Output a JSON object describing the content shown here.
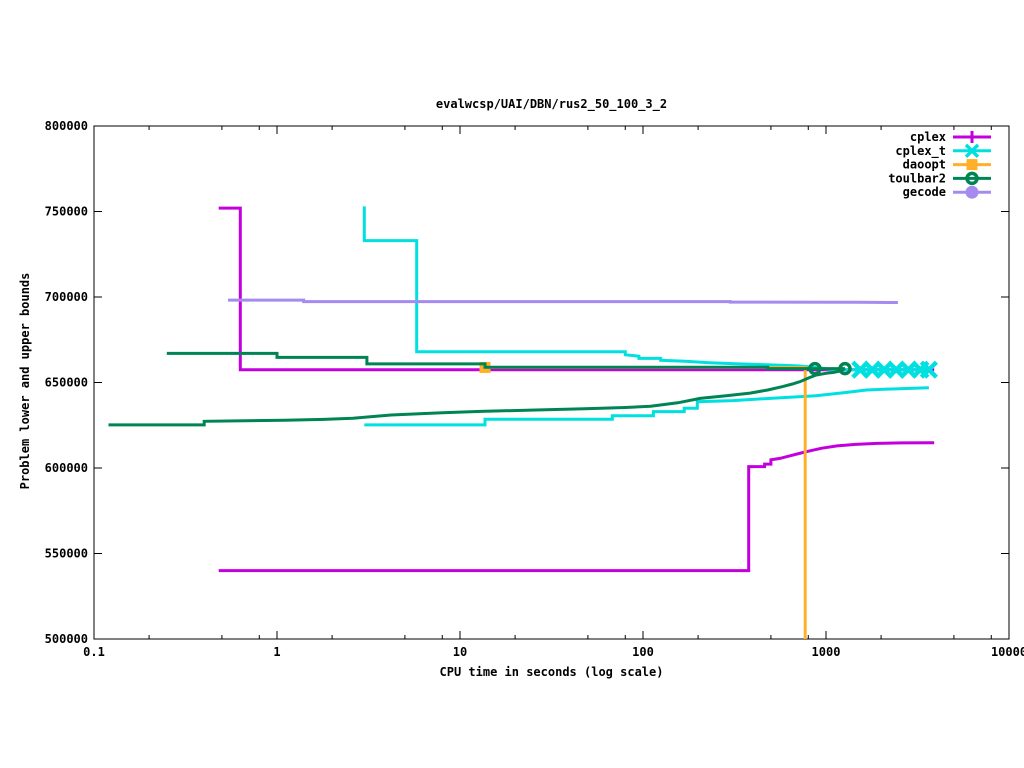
{
  "chart_data": {
    "type": "line",
    "title": "evalwcsp/UAI/DBN/rus2_50_100_3_2",
    "xlabel": "CPU time in seconds (log scale)",
    "ylabel": "Problem lower and upper bounds",
    "x_scale": "log10",
    "xlim": [
      0.1,
      10000
    ],
    "ylim": [
      500000,
      800000
    ],
    "grid": false,
    "legend_position": "top-right-inside",
    "x_ticks": [
      {
        "v": 0.1,
        "label": "0.1"
      },
      {
        "v": 1,
        "label": "1"
      },
      {
        "v": 10,
        "label": "10"
      },
      {
        "v": 100,
        "label": "100"
      },
      {
        "v": 1000,
        "label": "1000"
      },
      {
        "v": 10000,
        "label": "10000"
      }
    ],
    "x_minor_ticks": [
      0.2,
      0.5,
      0.8,
      2,
      5,
      8,
      20,
      50,
      80,
      200,
      500,
      800,
      2000,
      5000,
      8000
    ],
    "y_ticks": [
      {
        "v": 500000,
        "label": "500000"
      },
      {
        "v": 550000,
        "label": "550000"
      },
      {
        "v": 600000,
        "label": "600000"
      },
      {
        "v": 650000,
        "label": "650000"
      },
      {
        "v": 700000,
        "label": "700000"
      },
      {
        "v": 750000,
        "label": "750000"
      },
      {
        "v": 800000,
        "label": "800000"
      }
    ],
    "series": [
      {
        "name": "cplex",
        "color": "#c300dd",
        "marker": "plus",
        "lines": {
          "upper": [
            [
              0.48,
              752000
            ],
            [
              0.63,
              752000
            ],
            [
              0.63,
              657500
            ],
            [
              3900,
              657500
            ]
          ],
          "lower": [
            [
              0.48,
              540000
            ],
            [
              378,
              540000
            ],
            [
              378,
              600800
            ],
            [
              462,
              600800
            ],
            [
              462,
              602300
            ],
            [
              500,
              602300
            ],
            [
              500,
              604800
            ],
            [
              560,
              605600
            ],
            [
              640,
              607200
            ],
            [
              730,
              608800
            ],
            [
              830,
              610200
            ],
            [
              950,
              611600
            ],
            [
              1150,
              612900
            ],
            [
              1450,
              613800
            ],
            [
              1900,
              614400
            ],
            [
              2600,
              614700
            ],
            [
              3900,
              614800
            ]
          ]
        },
        "marker_points": []
      },
      {
        "name": "cplex_t",
        "color": "#00e0e0",
        "marker": "cross",
        "lines": {
          "upper": [
            [
              3,
              753000
            ],
            [
              3,
              733000
            ],
            [
              5.8,
              733000
            ],
            [
              5.8,
              668000
            ],
            [
              80,
              668000
            ],
            [
              80,
              666200
            ],
            [
              95,
              665400
            ],
            [
              95,
              664100
            ],
            [
              125,
              664100
            ],
            [
              125,
              663000
            ],
            [
              170,
              662400
            ],
            [
              230,
              661600
            ],
            [
              320,
              661000
            ],
            [
              500,
              660300
            ],
            [
              700,
              659700
            ],
            [
              900,
              658700
            ],
            [
              1050,
              657800
            ],
            [
              1250,
              657500
            ],
            [
              3700,
              657500
            ]
          ],
          "lower": [
            [
              3,
              625200
            ],
            [
              13.7,
              625200
            ],
            [
              13.7,
              628500
            ],
            [
              68,
              628500
            ],
            [
              68,
              630600
            ],
            [
              114,
              630600
            ],
            [
              114,
              633000
            ],
            [
              168,
              633000
            ],
            [
              168,
              635000
            ],
            [
              198,
              635000
            ],
            [
              198,
              638800
            ],
            [
              310,
              639400
            ],
            [
              510,
              640800
            ],
            [
              880,
              642300
            ],
            [
              1300,
              644200
            ],
            [
              1660,
              645600
            ],
            [
              2500,
              646400
            ],
            [
              3650,
              646900
            ]
          ]
        },
        "marker_points": [
          [
            1540,
            657500
          ],
          [
            1790,
            657500
          ],
          [
            2080,
            657500
          ],
          [
            2420,
            657500
          ],
          [
            2820,
            657500
          ],
          [
            3280,
            657500
          ],
          [
            3650,
            657500
          ]
        ]
      },
      {
        "name": "daoopt",
        "color": "#ffb028",
        "marker": "square",
        "lines": {
          "upper": [
            [
              13.7,
              658800
            ],
            [
              770,
              658800
            ],
            [
              770,
              500000
            ]
          ]
        },
        "marker_points": [
          [
            13.7,
            658800
          ]
        ]
      },
      {
        "name": "toulbar2",
        "color": "#008453",
        "marker": "circle-open",
        "lines": {
          "upper": [
            [
              0.25,
              667000
            ],
            [
              1.0,
              667000
            ],
            [
              1.0,
              664700
            ],
            [
              3.1,
              664700
            ],
            [
              3.1,
              660900
            ],
            [
              13.7,
              660900
            ],
            [
              13.7,
              658900
            ],
            [
              480,
              658900
            ],
            [
              480,
              658100
            ],
            [
              1270,
              658100
            ]
          ],
          "lower": [
            [
              0.12,
              625200
            ],
            [
              0.4,
              625200
            ],
            [
              0.4,
              627300
            ],
            [
              1.1,
              627900
            ],
            [
              1.8,
              628400
            ],
            [
              2.6,
              629100
            ],
            [
              4.2,
              631000
            ],
            [
              8,
              632300
            ],
            [
              13,
              633100
            ],
            [
              26,
              633900
            ],
            [
              48,
              634600
            ],
            [
              80,
              635400
            ],
            [
              110,
              636100
            ],
            [
              155,
              638100
            ],
            [
              205,
              640700
            ],
            [
              285,
              642300
            ],
            [
              385,
              643800
            ],
            [
              480,
              645600
            ],
            [
              580,
              647600
            ],
            [
              655,
              649100
            ],
            [
              725,
              650600
            ],
            [
              805,
              652700
            ],
            [
              885,
              654400
            ],
            [
              1000,
              655400
            ],
            [
              1100,
              655900
            ],
            [
              1200,
              656700
            ],
            [
              1270,
              658100
            ]
          ]
        },
        "marker_points": [
          [
            870,
            658100
          ],
          [
            1270,
            658100
          ]
        ]
      },
      {
        "name": "gecode",
        "color": "#a58af0",
        "marker": "circle-filled",
        "lines": {
          "upper": [
            [
              0.54,
              698200
            ],
            [
              1.4,
              698200
            ],
            [
              1.4,
              697300
            ],
            [
              300,
              697300
            ],
            [
              300,
              697000
            ],
            [
              1500,
              696900
            ],
            [
              2470,
              696800
            ]
          ]
        },
        "marker_points": []
      }
    ]
  }
}
